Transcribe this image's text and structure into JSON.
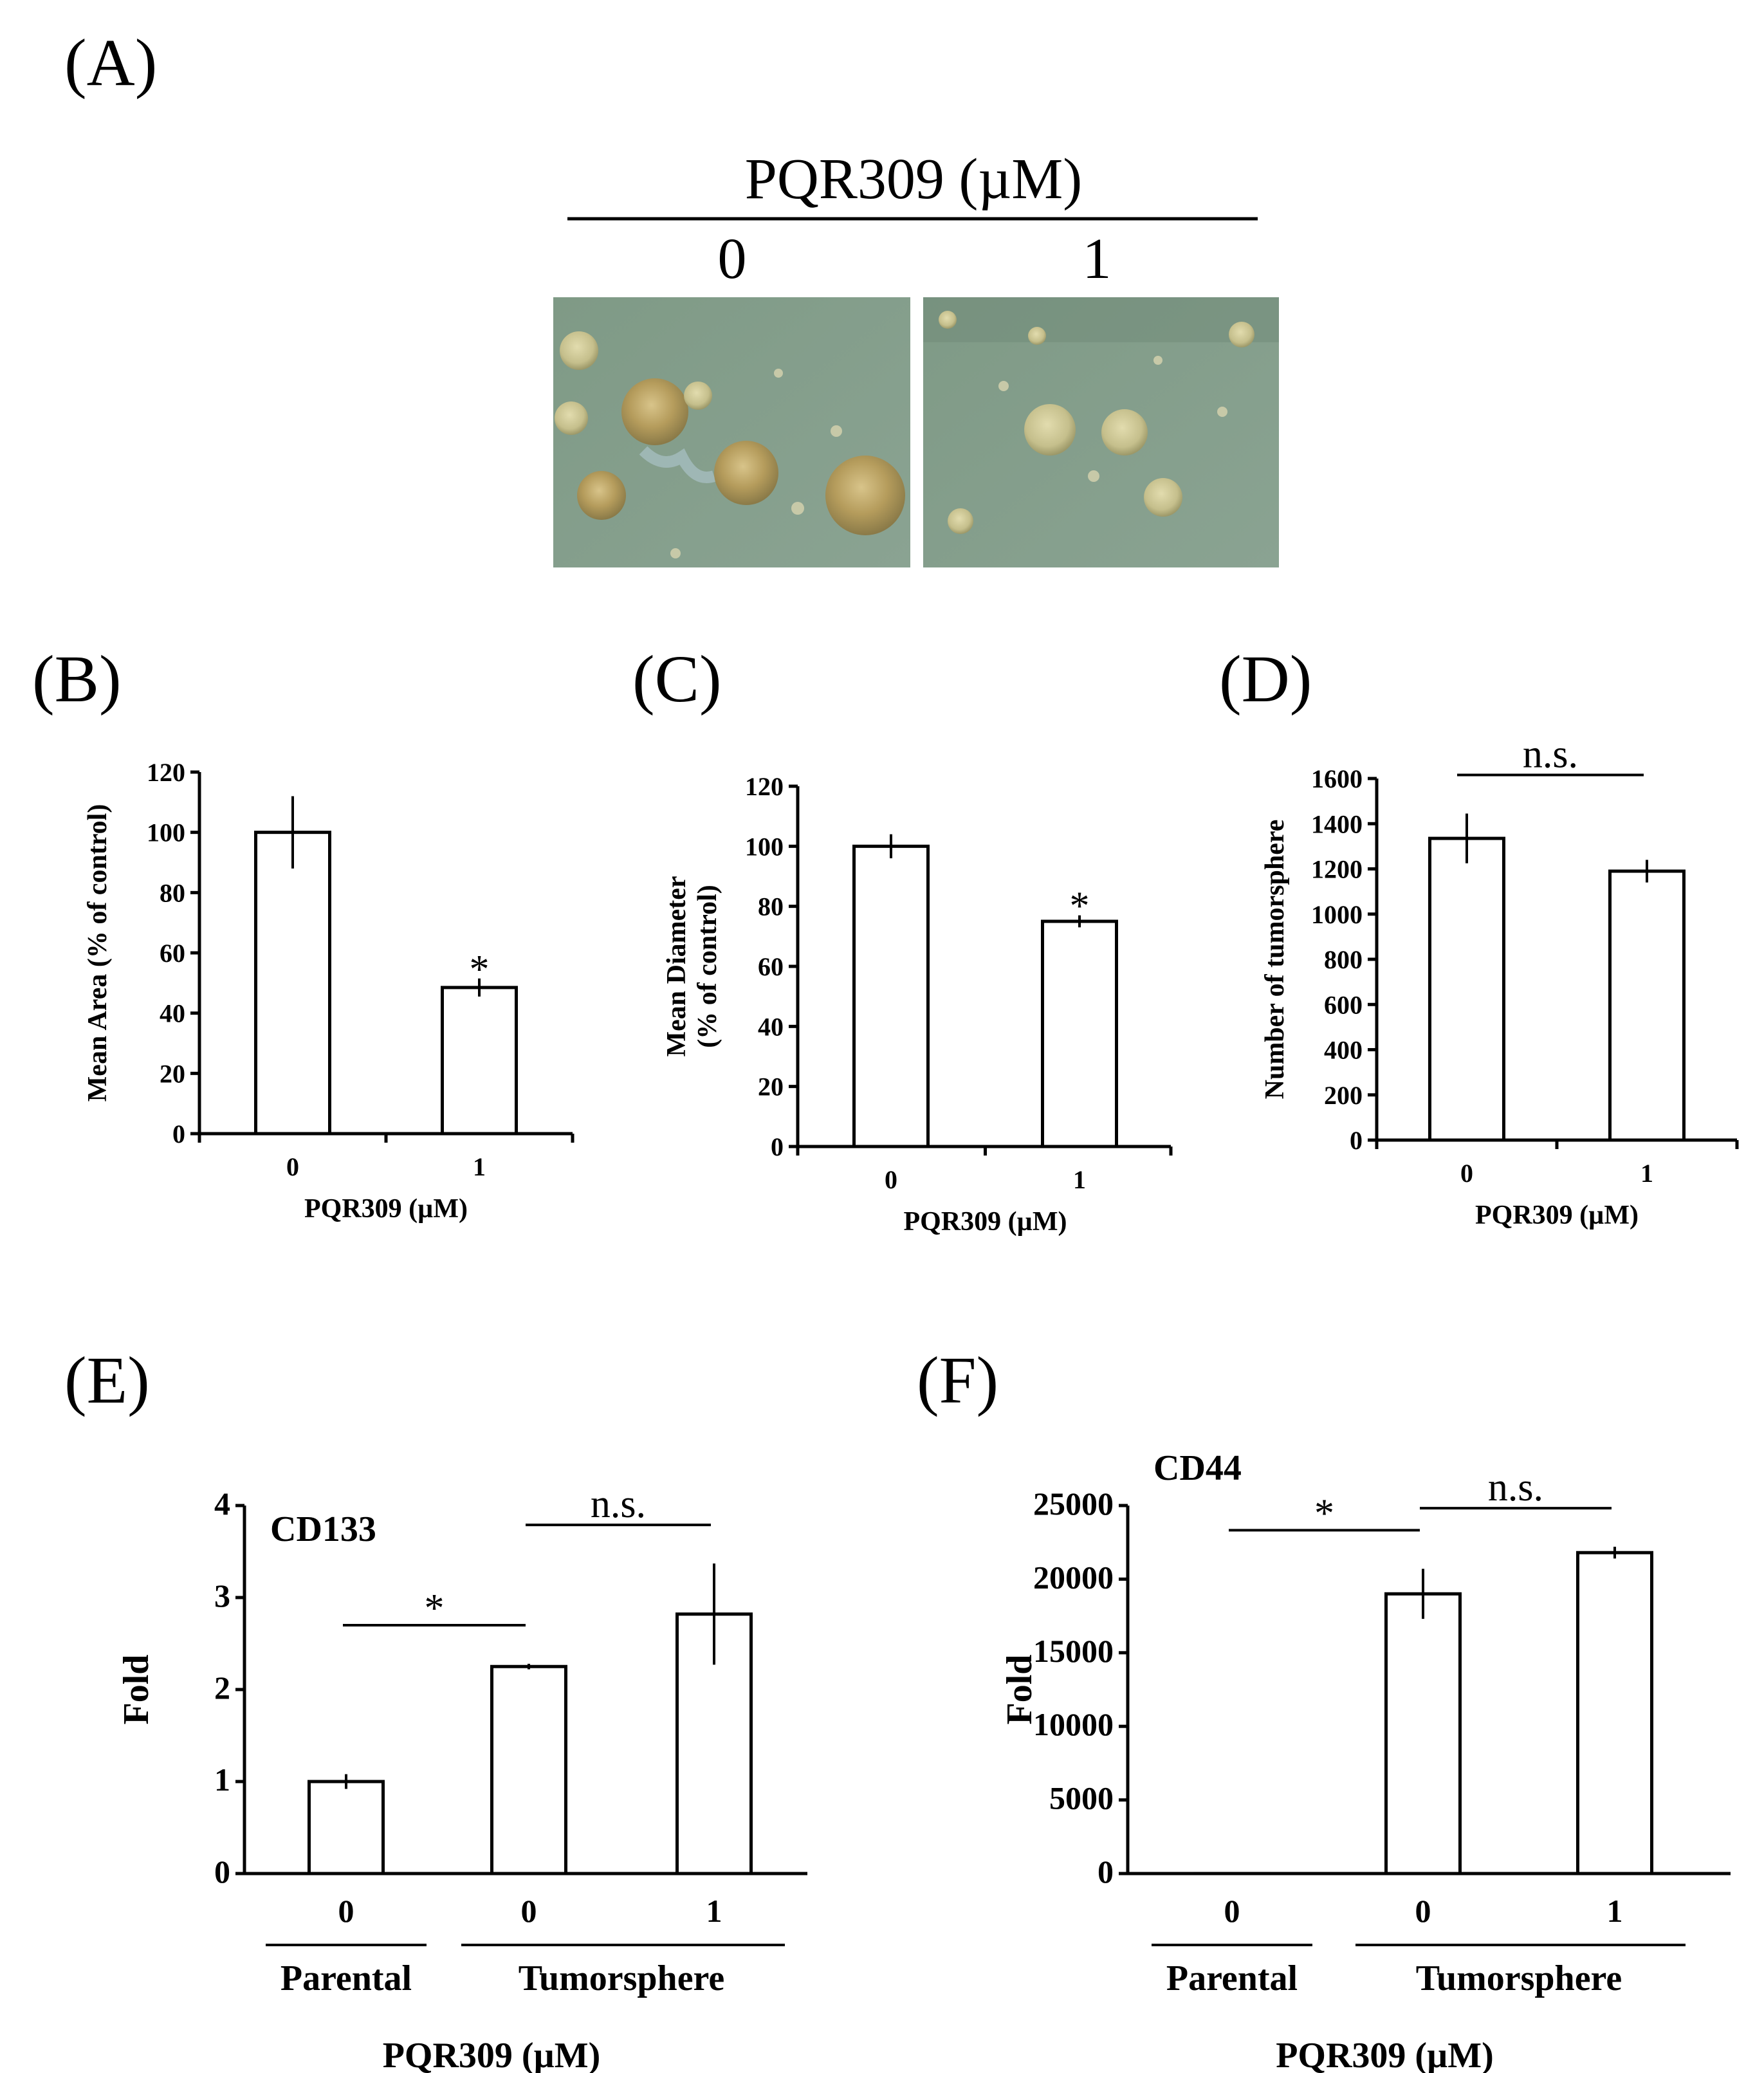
{
  "panel_A": {
    "label": "(A)",
    "header": "PQR309 (µM)",
    "doses": [
      "0",
      "1"
    ]
  },
  "chart_data": [
    {
      "id": "B",
      "panel_label": "(B)",
      "type": "bar",
      "categories": [
        "0",
        "1"
      ],
      "values": [
        100,
        48.5
      ],
      "errors": [
        12,
        3
      ],
      "ylabel": "Mean Area (% of control)",
      "xlabel": "PQR309 (µM)",
      "ylim": [
        0,
        120
      ],
      "yticks": [
        "0",
        "20",
        "40",
        "60",
        "80",
        "100",
        "120"
      ],
      "annotations": [
        {
          "text": "*",
          "on": "1"
        }
      ]
    },
    {
      "id": "C",
      "panel_label": "(C)",
      "type": "bar",
      "categories": [
        "0",
        "1"
      ],
      "values": [
        100,
        75
      ],
      "errors": [
        4,
        2
      ],
      "ylabel_lines": [
        "Mean Diameter",
        "(% of control)"
      ],
      "xlabel": "PQR309 (µM)",
      "ylim": [
        0,
        120
      ],
      "yticks": [
        "0",
        "20",
        "40",
        "60",
        "80",
        "100",
        "120"
      ],
      "annotations": [
        {
          "text": "*",
          "on": "1"
        }
      ]
    },
    {
      "id": "D",
      "panel_label": "(D)",
      "type": "bar",
      "categories": [
        "0",
        "1"
      ],
      "values": [
        1335,
        1190
      ],
      "errors": [
        110,
        50
      ],
      "ylabel": "Number of tumorsphere",
      "xlabel": "PQR309 (µM)",
      "ylim": [
        0,
        1600
      ],
      "yticks": [
        "0",
        "200",
        "400",
        "600",
        "800",
        "1000",
        "1200",
        "1400",
        "1600"
      ],
      "annotations": [
        {
          "text": "n.s.",
          "from": "0",
          "to": "1"
        }
      ]
    },
    {
      "id": "E",
      "panel_label": "(E)",
      "type": "bar",
      "title": "CD133",
      "categories": [
        "0",
        "0",
        "1"
      ],
      "groups": [
        "Parental",
        "Tumorsphere"
      ],
      "values": [
        1.0,
        2.25,
        2.82
      ],
      "errors": [
        0.08,
        0.03,
        0.55
      ],
      "ylabel": "Fold",
      "xlabel": "PQR309 (µM)",
      "ylim": [
        0,
        4
      ],
      "yticks": [
        "0",
        "1",
        "2",
        "3",
        "4"
      ],
      "annotations": [
        {
          "text": "*",
          "from": 0,
          "to": 1
        },
        {
          "text": "n.s.",
          "from": 1,
          "to": 2
        }
      ]
    },
    {
      "id": "F",
      "panel_label": "(F)",
      "type": "bar",
      "title": "CD44",
      "categories": [
        "0",
        "0",
        "1"
      ],
      "groups": [
        "Parental",
        "Tumorsphere"
      ],
      "values": [
        1,
        19000,
        21800
      ],
      "errors": [
        0,
        1700,
        400
      ],
      "ylabel": "Fold",
      "xlabel": "PQR309 (µM)",
      "ylim": [
        0,
        25000
      ],
      "yticks": [
        "0",
        "5000",
        "10000",
        "15000",
        "20000",
        "25000"
      ],
      "annotations": [
        {
          "text": "*",
          "from": 0,
          "to": 1
        },
        {
          "text": "n.s.",
          "from": 1,
          "to": 2
        }
      ]
    }
  ]
}
